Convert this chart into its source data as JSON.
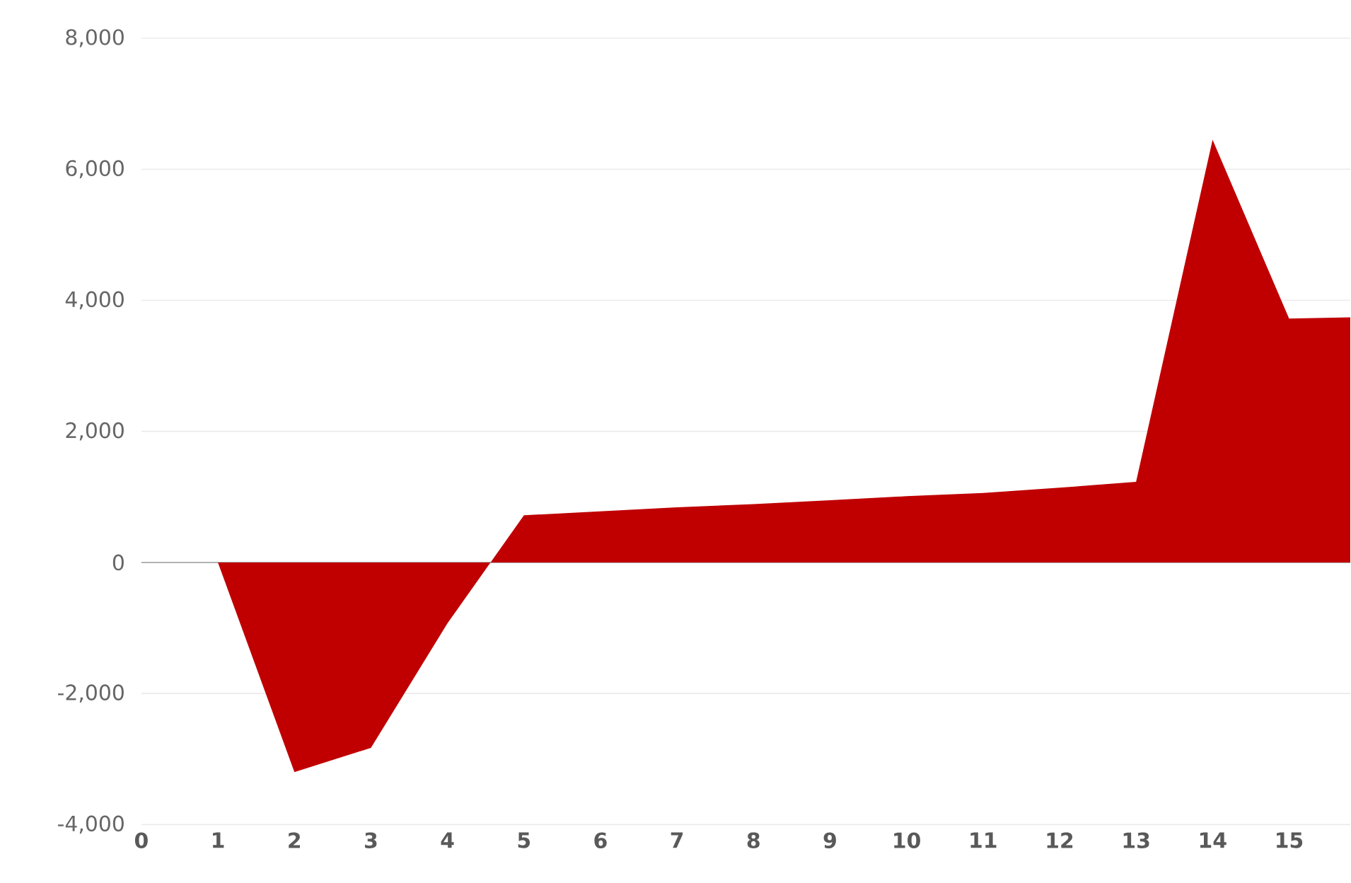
{
  "chart_data": {
    "type": "area",
    "color": "#c00000",
    "x": [
      1,
      2,
      3,
      4,
      5,
      6,
      7,
      8,
      9,
      10,
      11,
      12,
      13,
      14,
      15,
      15.8
    ],
    "values": [
      0,
      -3200,
      -2830,
      -930,
      720,
      780,
      840,
      890,
      950,
      1010,
      1060,
      1140,
      1230,
      6450,
      3720,
      3740
    ],
    "xlim": [
      0,
      15.8
    ],
    "ylim": [
      -4000,
      8000
    ],
    "xticks": [
      0,
      1,
      2,
      3,
      4,
      5,
      6,
      7,
      8,
      9,
      10,
      11,
      12,
      13,
      14,
      15
    ],
    "yticks": [
      {
        "value": -4000,
        "label": "-4,000"
      },
      {
        "value": -2000,
        "label": "-2,000"
      },
      {
        "value": 0,
        "label": "0"
      },
      {
        "value": 2000,
        "label": "2,000"
      },
      {
        "value": 4000,
        "label": "4,000"
      },
      {
        "value": 6000,
        "label": "6,000"
      },
      {
        "value": 8000,
        "label": "8,000"
      }
    ],
    "grid": "y"
  }
}
